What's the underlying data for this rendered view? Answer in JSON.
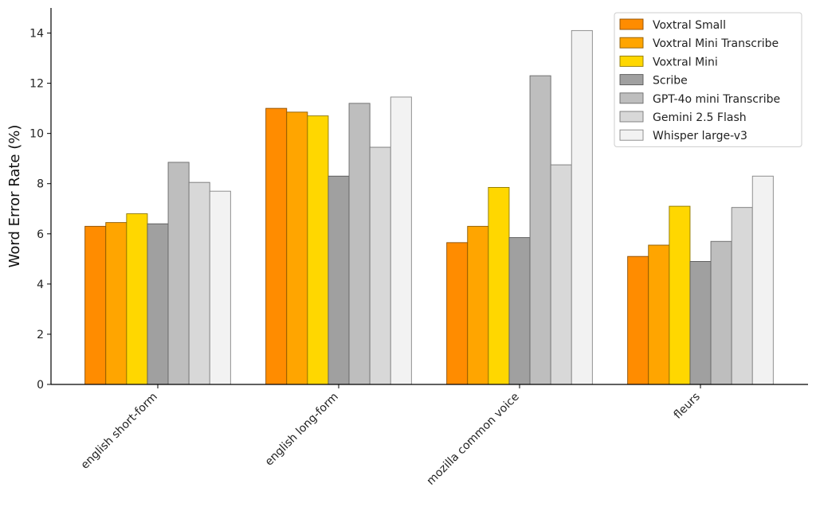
{
  "chart_data": {
    "type": "bar",
    "ylabel": "Word Error Rate (%)",
    "xlabel": "",
    "ylim": [
      0,
      15
    ],
    "yticks": [
      0,
      2,
      4,
      6,
      8,
      10,
      12,
      14
    ],
    "ytick_labels": [
      "0",
      "2",
      "4",
      "6",
      "8",
      "10",
      "12",
      "14"
    ],
    "grid": false,
    "legend_position": "top-right",
    "categories": [
      "english short-form",
      "english long-form",
      "mozilla common voice",
      "fleurs"
    ],
    "series": [
      {
        "name": "Voxtral Small",
        "color": "#FF8C00",
        "values": [
          6.3,
          11.0,
          5.65,
          5.1
        ]
      },
      {
        "name": "Voxtral Mini Transcribe",
        "color": "#FFA500",
        "values": [
          6.45,
          10.85,
          6.3,
          5.55
        ]
      },
      {
        "name": "Voxtral Mini",
        "color": "#FFD700",
        "values": [
          6.8,
          10.7,
          7.85,
          7.1
        ]
      },
      {
        "name": "Scribe",
        "color": "#A0A0A0",
        "values": [
          6.4,
          8.3,
          5.85,
          4.9
        ]
      },
      {
        "name": "GPT-4o mini Transcribe",
        "color": "#BEBEBE",
        "values": [
          8.85,
          11.2,
          12.3,
          5.7
        ]
      },
      {
        "name": "Gemini 2.5 Flash",
        "color": "#D8D8D8",
        "values": [
          8.05,
          9.45,
          8.75,
          7.05
        ]
      },
      {
        "name": "Whisper large-v3",
        "color": "#F2F2F2",
        "values": [
          7.7,
          11.45,
          14.1,
          8.3
        ]
      }
    ]
  }
}
